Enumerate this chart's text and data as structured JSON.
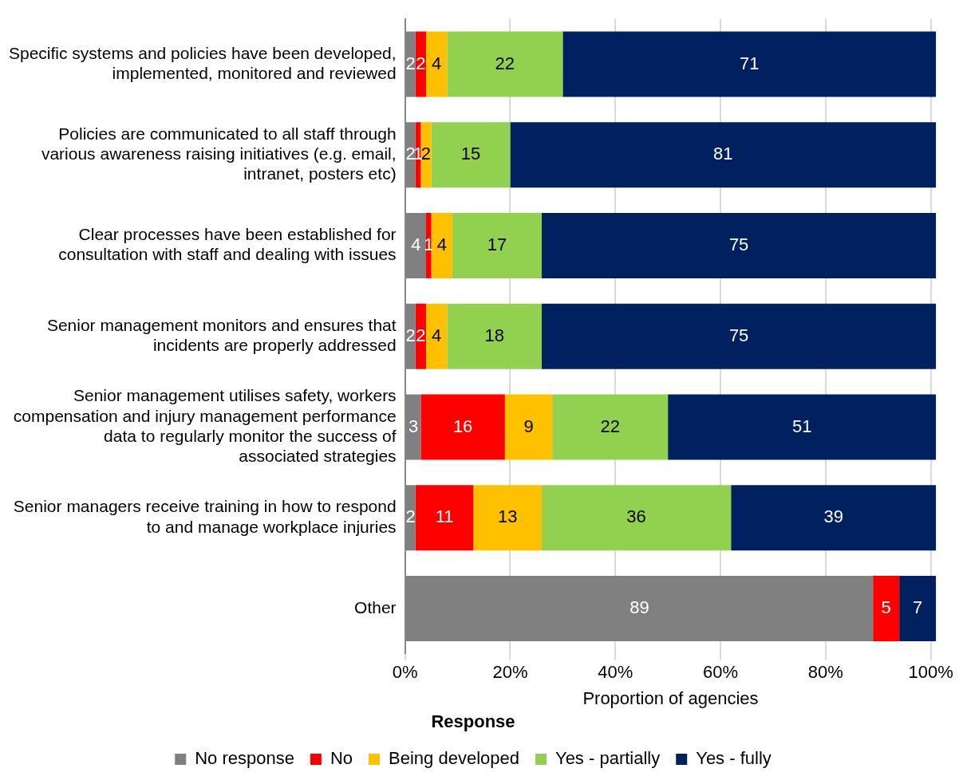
{
  "chart_data": {
    "type": "bar",
    "orientation": "horizontal",
    "stacked": true,
    "xlabel": "Proportion of agencies",
    "legend_title": "Response",
    "legend": "bottom",
    "grid": "x",
    "data_labels": true,
    "categories": [
      "Specific systems and policies have been developed, implemented, monitored and reviewed",
      "Policies are communicated to all staff through various awareness raising initiatives (e.g. email, intranet, posters etc)",
      "Clear processes have been established for consultation with staff and dealing with issues",
      "Senior management monitors and ensures that incidents are properly addressed",
      "Senior management utilises safety, workers compensation and injury management performance data to regularly monitor the success of associated strategies",
      "Senior managers receive training in how to respond to and manage workplace injuries",
      "Other"
    ],
    "xlim": [
      0,
      101
    ],
    "xticks": [
      {
        "value": 0,
        "label": "0%"
      },
      {
        "value": 20,
        "label": "20%"
      },
      {
        "value": 40,
        "label": "40%"
      },
      {
        "value": 60,
        "label": "60%"
      },
      {
        "value": 80,
        "label": "80%"
      },
      {
        "value": 100,
        "label": "100%"
      }
    ],
    "series": [
      {
        "name": "No response",
        "color": "#808080",
        "values": [
          2,
          2,
          4,
          2,
          3,
          2,
          89
        ]
      },
      {
        "name": "No",
        "color": "#ff0000",
        "values": [
          2,
          1,
          1,
          2,
          16,
          11,
          5
        ]
      },
      {
        "name": "Being developed",
        "color": "#ffc000",
        "values": [
          4,
          2,
          4,
          4,
          9,
          13,
          null
        ]
      },
      {
        "name": "Yes - partially",
        "color": "#92d050",
        "values": [
          22,
          15,
          17,
          18,
          22,
          36,
          null
        ]
      },
      {
        "name": "Yes - fully",
        "color": "#002060",
        "values": [
          71,
          81,
          75,
          75,
          51,
          39,
          7
        ]
      }
    ]
  }
}
